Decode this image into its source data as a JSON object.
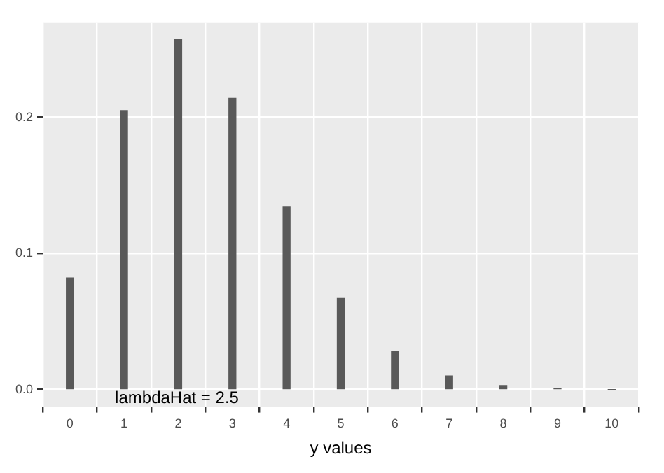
{
  "chart_data": {
    "type": "bar",
    "xlabel": "y values",
    "x": [
      0,
      1,
      2,
      3,
      4,
      5,
      6,
      7,
      8,
      9,
      10
    ],
    "values": [
      0.082,
      0.205,
      0.257,
      0.214,
      0.134,
      0.067,
      0.028,
      0.01,
      0.003,
      0.001,
      0.0
    ],
    "color": "#595959",
    "xlim": [
      -0.5,
      10.5
    ],
    "xticks": [
      0,
      1,
      2,
      3,
      4,
      5,
      6,
      7,
      8,
      9,
      10
    ],
    "ylim": [
      -0.0128,
      0.2693
    ],
    "yticks": [
      {
        "value": 0,
        "label": "0.0"
      },
      {
        "value": 0.1,
        "label": "0.1"
      },
      {
        "value": 0.2,
        "label": "0.2"
      }
    ],
    "grid": true,
    "annotations": [
      "lambdaHat = 2.5"
    ]
  }
}
